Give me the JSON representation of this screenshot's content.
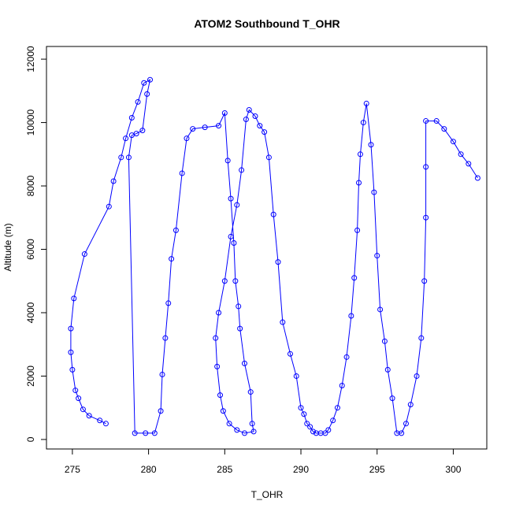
{
  "chart_data": {
    "type": "scatter",
    "title": "ATOM2 Southbound T_OHR",
    "xlabel": "T_OHR",
    "ylabel": "Altitude (m)",
    "xlim": [
      273.3,
      302.2
    ],
    "ylim": [
      -300,
      12400
    ],
    "xticks": [
      275,
      280,
      285,
      290,
      295,
      300
    ],
    "yticks": [
      0,
      2000,
      4000,
      6000,
      8000,
      10000,
      12000
    ],
    "grid": false,
    "legend": "none",
    "line_connected": true,
    "series_color": "#0000ff",
    "series": [
      {
        "values": [
          [
            277.2,
            500
          ],
          [
            276.8,
            600
          ],
          [
            276.1,
            750
          ],
          [
            275.7,
            950
          ],
          [
            275.4,
            1300
          ],
          [
            275.2,
            1550
          ],
          [
            275.0,
            2200
          ],
          [
            274.9,
            2750
          ],
          [
            274.9,
            3500
          ],
          [
            275.1,
            4450
          ],
          [
            275.8,
            5850
          ],
          [
            277.4,
            7350
          ],
          [
            277.7,
            8150
          ],
          [
            278.2,
            8900
          ],
          [
            278.5,
            9500
          ],
          [
            278.9,
            10150
          ],
          [
            279.3,
            10650
          ],
          [
            279.7,
            11250
          ],
          [
            280.1,
            11350
          ],
          [
            279.9,
            10900
          ],
          [
            279.6,
            9750
          ],
          [
            279.2,
            9650
          ],
          [
            278.9,
            9600
          ],
          [
            278.7,
            8900
          ],
          [
            279.1,
            200
          ],
          [
            279.8,
            200
          ],
          [
            280.4,
            200
          ],
          [
            280.8,
            900
          ],
          [
            280.9,
            2050
          ],
          [
            281.1,
            3200
          ],
          [
            281.3,
            4300
          ],
          [
            281.5,
            5700
          ],
          [
            281.8,
            6600
          ],
          [
            282.2,
            8400
          ],
          [
            282.5,
            9500
          ],
          [
            282.9,
            9800
          ],
          [
            283.7,
            9850
          ],
          [
            284.6,
            9900
          ],
          [
            285.0,
            10300
          ],
          [
            285.2,
            8800
          ],
          [
            285.4,
            7600
          ],
          [
            285.6,
            6200
          ],
          [
            285.7,
            5000
          ],
          [
            285.9,
            4200
          ],
          [
            286.0,
            3500
          ],
          [
            286.3,
            2400
          ],
          [
            286.7,
            1500
          ],
          [
            286.8,
            500
          ],
          [
            286.9,
            250
          ],
          [
            286.3,
            200
          ],
          [
            285.8,
            300
          ],
          [
            285.3,
            500
          ],
          [
            284.9,
            900
          ],
          [
            284.7,
            1400
          ],
          [
            284.5,
            2300
          ],
          [
            284.4,
            3200
          ],
          [
            284.6,
            4000
          ],
          [
            285.0,
            5000
          ],
          [
            285.4,
            6400
          ],
          [
            285.8,
            7400
          ],
          [
            286.1,
            8500
          ],
          [
            286.4,
            10100
          ],
          [
            286.6,
            10400
          ],
          [
            287.0,
            10200
          ],
          [
            287.3,
            9900
          ],
          [
            287.6,
            9700
          ],
          [
            287.9,
            8900
          ],
          [
            288.2,
            7100
          ],
          [
            288.5,
            5600
          ],
          [
            288.8,
            3700
          ],
          [
            289.3,
            2700
          ],
          [
            289.7,
            2000
          ],
          [
            290.0,
            1000
          ],
          [
            290.2,
            800
          ],
          [
            290.4,
            500
          ],
          [
            290.6,
            400
          ],
          [
            290.8,
            250
          ],
          [
            291.0,
            200
          ],
          [
            291.3,
            200
          ],
          [
            291.6,
            200
          ],
          [
            291.8,
            300
          ],
          [
            292.1,
            600
          ],
          [
            292.4,
            1000
          ],
          [
            292.7,
            1700
          ],
          [
            293.0,
            2600
          ],
          [
            293.3,
            3900
          ],
          [
            293.5,
            5100
          ],
          [
            293.7,
            6600
          ],
          [
            293.8,
            8100
          ],
          [
            293.9,
            9000
          ],
          [
            294.1,
            10000
          ],
          [
            294.3,
            10600
          ],
          [
            294.6,
            9300
          ],
          [
            294.8,
            7800
          ],
          [
            295.0,
            5800
          ],
          [
            295.2,
            4100
          ],
          [
            295.5,
            3100
          ],
          [
            295.7,
            2200
          ],
          [
            296.0,
            1300
          ],
          [
            296.3,
            200
          ],
          [
            296.6,
            200
          ],
          [
            296.9,
            500
          ],
          [
            297.2,
            1100
          ],
          [
            297.6,
            2000
          ],
          [
            297.9,
            3200
          ],
          [
            298.1,
            5000
          ],
          [
            298.2,
            7000
          ],
          [
            298.2,
            8600
          ],
          [
            298.2,
            10050
          ],
          [
            298.9,
            10050
          ],
          [
            299.4,
            9800
          ],
          [
            300.0,
            9400
          ],
          [
            300.5,
            9000
          ],
          [
            301.0,
            8700
          ],
          [
            301.6,
            8250
          ]
        ]
      }
    ]
  }
}
